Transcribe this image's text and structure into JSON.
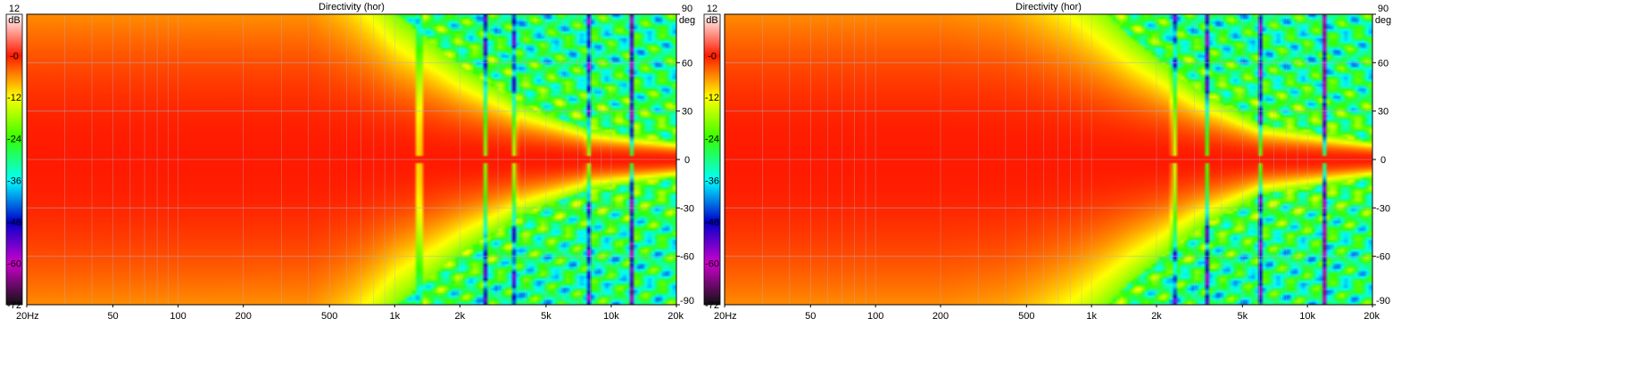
{
  "chart_data": [
    {
      "type": "heatmap",
      "title": "Directivity (hor)",
      "colorbar": {
        "unit": "dB",
        "ticks": [
          "12",
          "-0",
          "-12",
          "-24",
          "-36",
          "-48",
          "-60",
          "-72"
        ],
        "range": [
          -72,
          12
        ],
        "stops": [
          {
            "db": 12,
            "color": "#ffffff"
          },
          {
            "db": 0,
            "color": "#ff1a00"
          },
          {
            "db": -6,
            "color": "#ff8c00"
          },
          {
            "db": -12,
            "color": "#ffff00"
          },
          {
            "db": -24,
            "color": "#33ff00"
          },
          {
            "db": -36,
            "color": "#00ffff"
          },
          {
            "db": -48,
            "color": "#0000cc"
          },
          {
            "db": -54,
            "color": "#6600cc"
          },
          {
            "db": -60,
            "color": "#cc00cc"
          },
          {
            "db": -72,
            "color": "#111111"
          }
        ]
      },
      "x_axis": {
        "scale": "log",
        "range": [
          20,
          20000
        ],
        "ticks": [
          {
            "value": 20,
            "label": "20Hz"
          },
          {
            "value": 50,
            "label": "50"
          },
          {
            "value": 100,
            "label": "100"
          },
          {
            "value": 200,
            "label": "200"
          },
          {
            "value": 500,
            "label": "500"
          },
          {
            "value": 1000,
            "label": "1k"
          },
          {
            "value": 2000,
            "label": "2k"
          },
          {
            "value": 5000,
            "label": "5k"
          },
          {
            "value": 10000,
            "label": "10k"
          },
          {
            "value": 20000,
            "label": "20k"
          }
        ]
      },
      "y_axis": {
        "unit": "deg",
        "range": [
          -90,
          90
        ],
        "ticks": [
          {
            "value": 90,
            "label": "90"
          },
          {
            "value": 60,
            "label": "60"
          },
          {
            "value": 30,
            "label": "30"
          },
          {
            "value": 0,
            "label": "0"
          },
          {
            "value": -30,
            "label": "-30"
          },
          {
            "value": -60,
            "label": "-60"
          },
          {
            "value": -90,
            "label": "-90"
          }
        ]
      },
      "pattern": {
        "narrowing_start_hz": 500,
        "beamwidth_6db_deg": [
          [
            20,
            90
          ],
          [
            400,
            88
          ],
          [
            600,
            72
          ],
          [
            1000,
            50
          ],
          [
            2000,
            32
          ],
          [
            4000,
            18
          ],
          [
            8000,
            10
          ],
          [
            20000,
            6
          ]
        ],
        "lobe_nulls_hz": [
          1300,
          2600,
          3600,
          7800,
          12500
        ]
      },
      "grid": true
    },
    {
      "type": "heatmap",
      "title": "Directivity (hor)",
      "colorbar": {
        "unit": "dB",
        "ticks": [
          "12",
          "-0",
          "-12",
          "-24",
          "-36",
          "-48",
          "-60",
          "-72"
        ],
        "range": [
          -72,
          12
        ],
        "stops": [
          {
            "db": 12,
            "color": "#ffffff"
          },
          {
            "db": 0,
            "color": "#ff1a00"
          },
          {
            "db": -6,
            "color": "#ff8c00"
          },
          {
            "db": -12,
            "color": "#ffff00"
          },
          {
            "db": -24,
            "color": "#33ff00"
          },
          {
            "db": -36,
            "color": "#00ffff"
          },
          {
            "db": -48,
            "color": "#0000cc"
          },
          {
            "db": -54,
            "color": "#6600cc"
          },
          {
            "db": -60,
            "color": "#cc00cc"
          },
          {
            "db": -72,
            "color": "#111111"
          }
        ]
      },
      "x_axis": {
        "scale": "log",
        "range": [
          20,
          20000
        ],
        "ticks": [
          {
            "value": 20,
            "label": "20Hz"
          },
          {
            "value": 50,
            "label": "50"
          },
          {
            "value": 100,
            "label": "100"
          },
          {
            "value": 200,
            "label": "200"
          },
          {
            "value": 500,
            "label": "500"
          },
          {
            "value": 1000,
            "label": "1k"
          },
          {
            "value": 2000,
            "label": "2k"
          },
          {
            "value": 5000,
            "label": "5k"
          },
          {
            "value": 10000,
            "label": "10k"
          },
          {
            "value": 20000,
            "label": "20k"
          }
        ]
      },
      "y_axis": {
        "unit": "deg",
        "range": [
          -90,
          90
        ],
        "ticks": [
          {
            "value": 90,
            "label": "90"
          },
          {
            "value": 60,
            "label": "60"
          },
          {
            "value": 30,
            "label": "30"
          },
          {
            "value": 0,
            "label": "0"
          },
          {
            "value": -30,
            "label": "-30"
          },
          {
            "value": -60,
            "label": "-60"
          },
          {
            "value": -90,
            "label": "-90"
          }
        ]
      },
      "pattern": {
        "narrowing_start_hz": 400,
        "beamwidth_6db_deg": [
          [
            20,
            90
          ],
          [
            200,
            90
          ],
          [
            400,
            82
          ],
          [
            800,
            62
          ],
          [
            1500,
            42
          ],
          [
            3000,
            24
          ],
          [
            6000,
            12
          ],
          [
            20000,
            6
          ]
        ],
        "lobe_nulls_hz": [
          2400,
          3400,
          6000,
          12000
        ]
      },
      "grid": true
    }
  ]
}
